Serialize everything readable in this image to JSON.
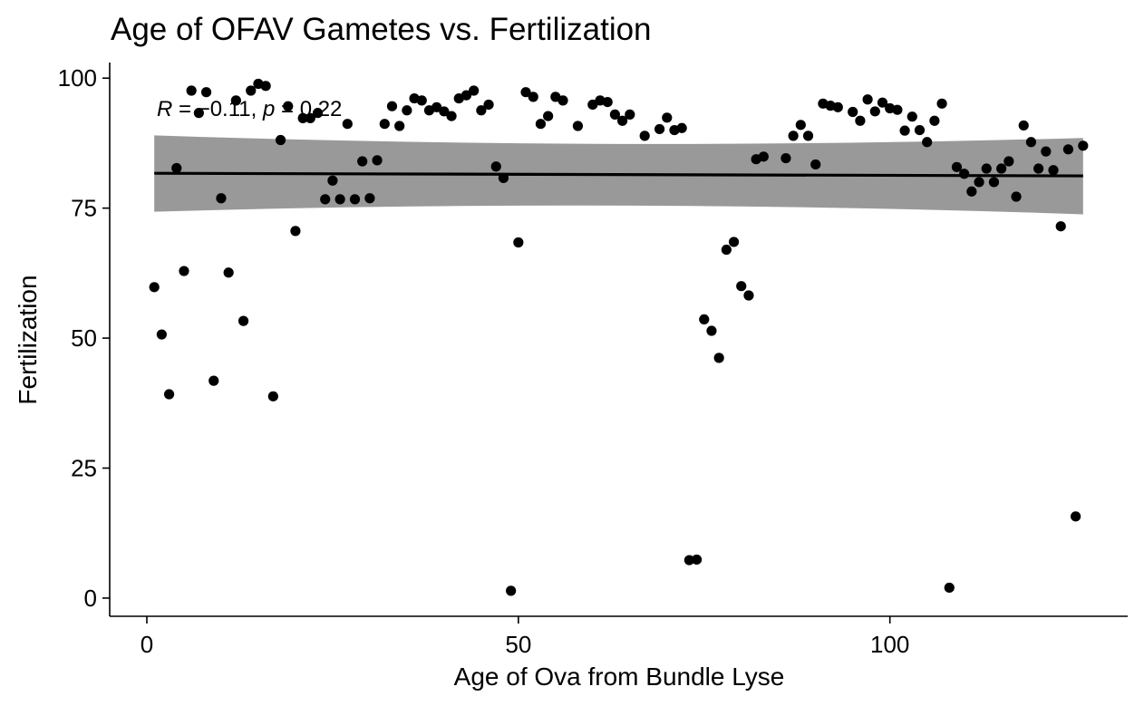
{
  "chart_data": {
    "type": "scatter",
    "title": "Age of OFAV Gametes vs. Fertilization",
    "xlabel": "Age of Ova from Bundle Lyse",
    "ylabel": "Fertilization",
    "xlim": [
      -5,
      132
    ],
    "ylim": [
      -3.5,
      103
    ],
    "xticks": [
      0,
      50,
      100
    ],
    "yticks": [
      0,
      25,
      50,
      75,
      100
    ],
    "grid": false,
    "legend": "none",
    "point_color": "#000000",
    "band_color": "#999999",
    "annotation": {
      "R_symbol": "R",
      "eq1": " = −0.11, ",
      "p_symbol": "p",
      "eq2": " = 0.22"
    },
    "regression": {
      "x": [
        1,
        126
      ],
      "y": [
        81.7,
        81.2
      ],
      "ci_lower": [
        74.3,
        73.8
      ],
      "ci_upper": [
        89.0,
        88.5
      ]
    },
    "points": [
      [
        1,
        59.8
      ],
      [
        2,
        50.7
      ],
      [
        3,
        39.2
      ],
      [
        4,
        82.7
      ],
      [
        5,
        62.9
      ],
      [
        6,
        97.6
      ],
      [
        7,
        93.3
      ],
      [
        8,
        97.3
      ],
      [
        9,
        41.8
      ],
      [
        10,
        76.9
      ],
      [
        11,
        62.6
      ],
      [
        12,
        95.7
      ],
      [
        13,
        53.3
      ],
      [
        14,
        97.6
      ],
      [
        15,
        98.9
      ],
      [
        16,
        98.5
      ],
      [
        17,
        38.8
      ],
      [
        18,
        88.1
      ],
      [
        19,
        94.6
      ],
      [
        20,
        70.6
      ],
      [
        21,
        92.3
      ],
      [
        22,
        92.3
      ],
      [
        23,
        93.3
      ],
      [
        24,
        76.7
      ],
      [
        25,
        80.3
      ],
      [
        26,
        76.7
      ],
      [
        27,
        91.2
      ],
      [
        28,
        76.7
      ],
      [
        29,
        84.0
      ],
      [
        30,
        76.9
      ],
      [
        31,
        84.2
      ],
      [
        32,
        91.2
      ],
      [
        33,
        94.6
      ],
      [
        34,
        90.8
      ],
      [
        35,
        93.8
      ],
      [
        36,
        96.1
      ],
      [
        37,
        95.7
      ],
      [
        38,
        93.8
      ],
      [
        39,
        94.4
      ],
      [
        40,
        93.6
      ],
      [
        41,
        92.7
      ],
      [
        42,
        96.1
      ],
      [
        43,
        96.7
      ],
      [
        44,
        97.6
      ],
      [
        45,
        93.8
      ],
      [
        46,
        94.9
      ],
      [
        47,
        83.0
      ],
      [
        48,
        80.8
      ],
      [
        49,
        1.4
      ],
      [
        50,
        68.4
      ],
      [
        51,
        97.3
      ],
      [
        52,
        96.4
      ],
      [
        53,
        91.2
      ],
      [
        54,
        92.7
      ],
      [
        55,
        96.4
      ],
      [
        56,
        95.7
      ],
      [
        58,
        90.8
      ],
      [
        60,
        94.9
      ],
      [
        61,
        95.7
      ],
      [
        62,
        95.4
      ],
      [
        63,
        93.0
      ],
      [
        64,
        91.8
      ],
      [
        65,
        93.0
      ],
      [
        67,
        88.9
      ],
      [
        69,
        90.2
      ],
      [
        70,
        92.4
      ],
      [
        71,
        90.0
      ],
      [
        72,
        90.4
      ],
      [
        73,
        7.3
      ],
      [
        74,
        7.4
      ],
      [
        75,
        53.6
      ],
      [
        76,
        51.4
      ],
      [
        77,
        46.2
      ],
      [
        78,
        67.0
      ],
      [
        79,
        68.5
      ],
      [
        80,
        60.0
      ],
      [
        81,
        58.2
      ],
      [
        82,
        84.4
      ],
      [
        83,
        84.9
      ],
      [
        86,
        84.6
      ],
      [
        87,
        88.9
      ],
      [
        88,
        91.0
      ],
      [
        89,
        88.9
      ],
      [
        90,
        83.4
      ],
      [
        91,
        95.1
      ],
      [
        92,
        94.7
      ],
      [
        93,
        94.4
      ],
      [
        95,
        93.5
      ],
      [
        96,
        91.8
      ],
      [
        97,
        95.9
      ],
      [
        98,
        93.6
      ],
      [
        99,
        95.3
      ],
      [
        100,
        94.2
      ],
      [
        101,
        93.9
      ],
      [
        102,
        89.9
      ],
      [
        103,
        92.6
      ],
      [
        104,
        90.0
      ],
      [
        105,
        87.7
      ],
      [
        106,
        91.8
      ],
      [
        107,
        95.1
      ],
      [
        108,
        2.0
      ],
      [
        109,
        82.9
      ],
      [
        110,
        81.6
      ],
      [
        111,
        78.2
      ],
      [
        112,
        80.0
      ],
      [
        113,
        82.6
      ],
      [
        114,
        80.0
      ],
      [
        115,
        82.6
      ],
      [
        116,
        84.0
      ],
      [
        117,
        77.2
      ],
      [
        118,
        90.9
      ],
      [
        119,
        87.7
      ],
      [
        120,
        82.6
      ],
      [
        121,
        85.9
      ],
      [
        122,
        82.3
      ],
      [
        123,
        71.5
      ],
      [
        124,
        86.3
      ],
      [
        125,
        15.7
      ],
      [
        126,
        87.0
      ]
    ]
  }
}
